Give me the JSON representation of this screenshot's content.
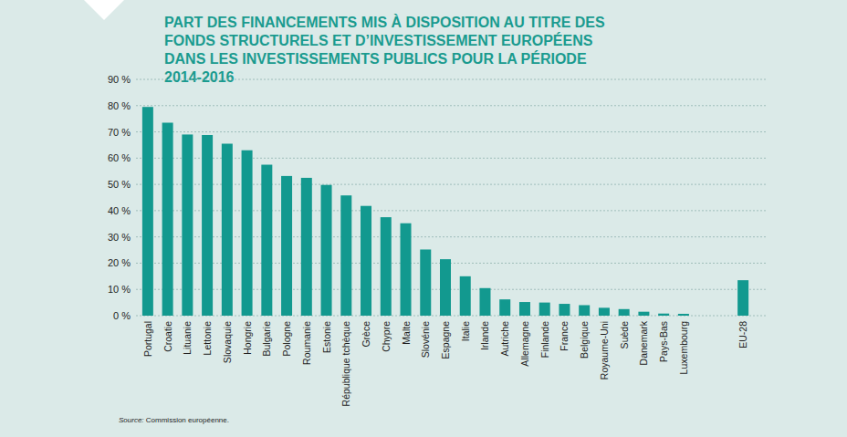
{
  "chart_data": {
    "type": "bar",
    "title": "PART DES FINANCEMENTS MIS À DISPOSITION AU TITRE DES FONDS STRUCTURELS ET D’INVESTISSEMENT EUROPÉENS DANS LES INVESTISSEMENTS PUBLICS POUR LA PÉRIODE 2014-2016",
    "source": "Source: Commission européenne.",
    "categories": [
      "Portugal",
      "Croatie",
      "Lituanie",
      "Lettonie",
      "Slovaquie",
      "Hongrie",
      "Bulgarie",
      "Pologne",
      "Roumanie",
      "Estonie",
      "République tchèque",
      "Grèce",
      "Chypre",
      "Malte",
      "Slovénie",
      "Espagne",
      "Italie",
      "Irlande",
      "Autriche",
      "Allemagne",
      "Finlande",
      "France",
      "Belgique",
      "Royaume-Uni",
      "Suède",
      "Danemark",
      "Pays-Bas",
      "Luxembourg",
      null,
      null,
      "EU-28"
    ],
    "values": [
      79.5,
      73.5,
      69,
      68.8,
      65.5,
      63,
      57.5,
      53.2,
      52.5,
      49.8,
      45.8,
      41.8,
      37.5,
      35.2,
      25.2,
      21.5,
      15,
      10.5,
      6.2,
      5.2,
      5,
      4.5,
      4,
      3,
      2.5,
      1.5,
      0.8,
      0.7,
      null,
      null,
      13.5
    ],
    "color": "#12998f",
    "ylim": [
      0,
      90
    ],
    "yticks": [
      {
        "value": 0,
        "label": "0 %"
      },
      {
        "value": 10,
        "label": "10 %"
      },
      {
        "value": 20,
        "label": "20 %"
      },
      {
        "value": 30,
        "label": "30 %"
      },
      {
        "value": 40,
        "label": "40 %"
      },
      {
        "value": 50,
        "label": "50 %"
      },
      {
        "value": 60,
        "label": "60 %"
      },
      {
        "value": 70,
        "label": "70 %"
      },
      {
        "value": 80,
        "label": "80 %"
      },
      {
        "value": 90,
        "label": "90 %"
      }
    ],
    "grid": true
  }
}
